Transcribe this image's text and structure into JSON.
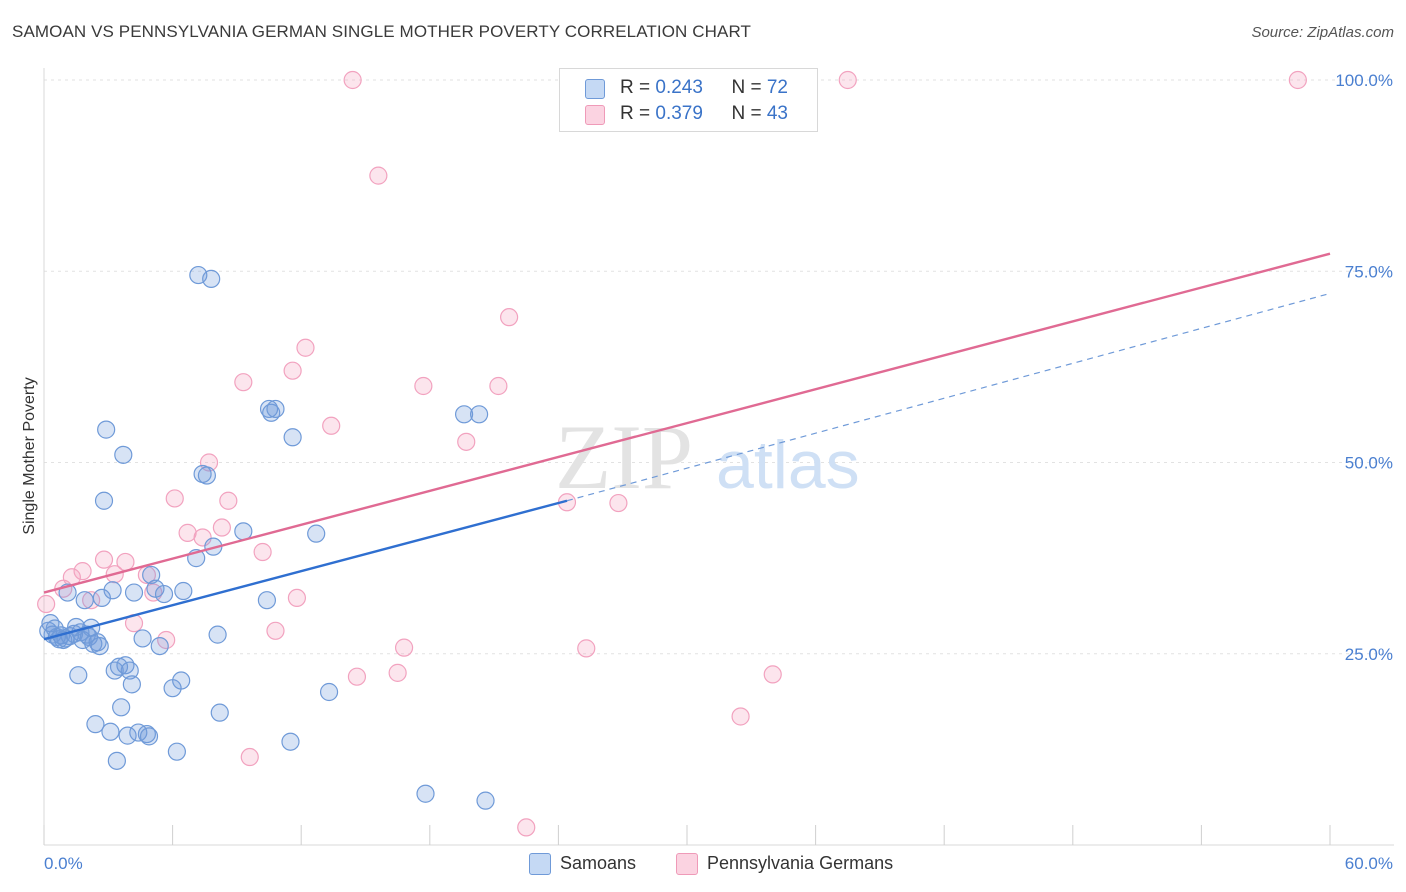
{
  "header": {
    "title": "SAMOAN VS PENNSYLVANIA GERMAN SINGLE MOTHER POVERTY CORRELATION CHART",
    "source": "Source: ZipAtlas.com"
  },
  "watermark": {
    "zip": "ZIP",
    "atlas": "atlas"
  },
  "legend_top": {
    "rows": [
      {
        "r_label": "R = ",
        "r_value": "0.243",
        "n_label": "N = ",
        "n_value": "72"
      },
      {
        "r_label": "R = ",
        "r_value": "0.379",
        "n_label": "N = ",
        "n_value": "43"
      }
    ]
  },
  "legend_bottom": {
    "items": [
      "Samoans",
      "Pennsylvania Germans"
    ]
  },
  "chart_data": {
    "type": "scatter",
    "ylabel": "Single Mother Poverty",
    "xlim": [
      0,
      60
    ],
    "ylim": [
      0,
      105
    ],
    "x_tick_labels": [
      "0.0%",
      "60.0%"
    ],
    "y_ticks": [
      25,
      50,
      75,
      100
    ],
    "y_tick_labels": [
      "25.0%",
      "50.0%",
      "75.0%",
      "100.0%"
    ],
    "grid": true,
    "legend": "top-center",
    "colors": {
      "Samoans": "#5b8fd6",
      "Pennsylvania Germans": "#f08cad"
    },
    "series": [
      {
        "name": "Samoans",
        "r": 0.243,
        "n": 72,
        "trend": {
          "x": [
            0,
            24.4
          ],
          "y": [
            26.9,
            45.0
          ],
          "color": "#2f6fd0"
        },
        "trend_ext": {
          "x": [
            24.4,
            60
          ],
          "y": [
            45.0,
            72.1
          ]
        },
        "points": [
          [
            0.2,
            28.0
          ],
          [
            0.3,
            29.0
          ],
          [
            0.4,
            27.5
          ],
          [
            0.5,
            28.3
          ],
          [
            0.6,
            27.2
          ],
          [
            0.7,
            26.9
          ],
          [
            0.8,
            27.4
          ],
          [
            0.9,
            26.8
          ],
          [
            1.0,
            27.0
          ],
          [
            1.1,
            33.0
          ],
          [
            1.2,
            27.3
          ],
          [
            1.4,
            27.6
          ],
          [
            1.5,
            28.5
          ],
          [
            1.6,
            22.2
          ],
          [
            1.7,
            27.8
          ],
          [
            1.8,
            26.8
          ],
          [
            1.9,
            32.0
          ],
          [
            2.0,
            27.5
          ],
          [
            2.1,
            27.2
          ],
          [
            2.2,
            28.4
          ],
          [
            2.3,
            26.3
          ],
          [
            2.4,
            15.8
          ],
          [
            2.5,
            26.5
          ],
          [
            2.6,
            26.0
          ],
          [
            2.7,
            32.3
          ],
          [
            2.8,
            45.0
          ],
          [
            2.9,
            54.3
          ],
          [
            3.1,
            14.8
          ],
          [
            3.2,
            33.3
          ],
          [
            3.3,
            22.8
          ],
          [
            3.4,
            11.0
          ],
          [
            3.5,
            23.3
          ],
          [
            3.6,
            18.0
          ],
          [
            3.7,
            51.0
          ],
          [
            3.8,
            23.5
          ],
          [
            3.9,
            14.3
          ],
          [
            4.0,
            22.8
          ],
          [
            4.1,
            21.0
          ],
          [
            4.2,
            33.0
          ],
          [
            4.4,
            14.7
          ],
          [
            4.6,
            27.0
          ],
          [
            4.8,
            14.5
          ],
          [
            4.9,
            14.2
          ],
          [
            5.0,
            35.3
          ],
          [
            5.2,
            33.5
          ],
          [
            5.4,
            26.0
          ],
          [
            5.6,
            32.8
          ],
          [
            6.0,
            20.5
          ],
          [
            6.2,
            12.2
          ],
          [
            6.4,
            21.5
          ],
          [
            6.5,
            33.2
          ],
          [
            7.1,
            37.5
          ],
          [
            7.2,
            74.5
          ],
          [
            7.4,
            48.5
          ],
          [
            7.6,
            48.3
          ],
          [
            7.8,
            74.0
          ],
          [
            7.9,
            39.0
          ],
          [
            8.1,
            27.5
          ],
          [
            8.2,
            17.3
          ],
          [
            9.3,
            41.0
          ],
          [
            10.4,
            32.0
          ],
          [
            10.5,
            57.0
          ],
          [
            10.6,
            56.5
          ],
          [
            10.8,
            57.0
          ],
          [
            11.5,
            13.5
          ],
          [
            11.6,
            53.3
          ],
          [
            12.7,
            40.7
          ],
          [
            13.3,
            20.0
          ],
          [
            17.8,
            6.7
          ],
          [
            19.6,
            56.3
          ],
          [
            20.3,
            56.3
          ],
          [
            20.6,
            5.8
          ]
        ]
      },
      {
        "name": "Pennsylvania Germans",
        "r": 0.379,
        "n": 43,
        "trend": {
          "x": [
            0,
            60
          ],
          "y": [
            33.0,
            77.3
          ],
          "color": "#e06a93"
        },
        "points": [
          [
            0.1,
            31.5
          ],
          [
            0.9,
            33.5
          ],
          [
            1.3,
            35.0
          ],
          [
            1.8,
            35.8
          ],
          [
            2.2,
            32.0
          ],
          [
            2.8,
            37.3
          ],
          [
            3.3,
            35.4
          ],
          [
            3.8,
            37.0
          ],
          [
            4.2,
            29.0
          ],
          [
            4.8,
            35.3
          ],
          [
            5.1,
            33.0
          ],
          [
            5.7,
            26.8
          ],
          [
            6.1,
            45.3
          ],
          [
            6.7,
            40.8
          ],
          [
            7.4,
            40.2
          ],
          [
            7.7,
            50.0
          ],
          [
            8.3,
            41.5
          ],
          [
            8.6,
            45.0
          ],
          [
            9.3,
            60.5
          ],
          [
            9.6,
            11.5
          ],
          [
            10.2,
            38.3
          ],
          [
            10.8,
            28.0
          ],
          [
            11.6,
            62.0
          ],
          [
            11.8,
            32.3
          ],
          [
            12.2,
            65.0
          ],
          [
            13.4,
            54.8
          ],
          [
            14.4,
            100.0
          ],
          [
            14.6,
            22.0
          ],
          [
            15.6,
            87.5
          ],
          [
            16.5,
            22.5
          ],
          [
            16.8,
            25.8
          ],
          [
            17.7,
            60.0
          ],
          [
            19.7,
            52.7
          ],
          [
            21.2,
            60.0
          ],
          [
            21.7,
            69.0
          ],
          [
            22.5,
            2.3
          ],
          [
            24.4,
            44.8
          ],
          [
            25.3,
            25.7
          ],
          [
            26.8,
            44.7
          ],
          [
            32.5,
            16.8
          ],
          [
            34.0,
            22.3
          ],
          [
            37.5,
            100.0
          ],
          [
            58.5,
            100.0
          ]
        ]
      }
    ]
  }
}
